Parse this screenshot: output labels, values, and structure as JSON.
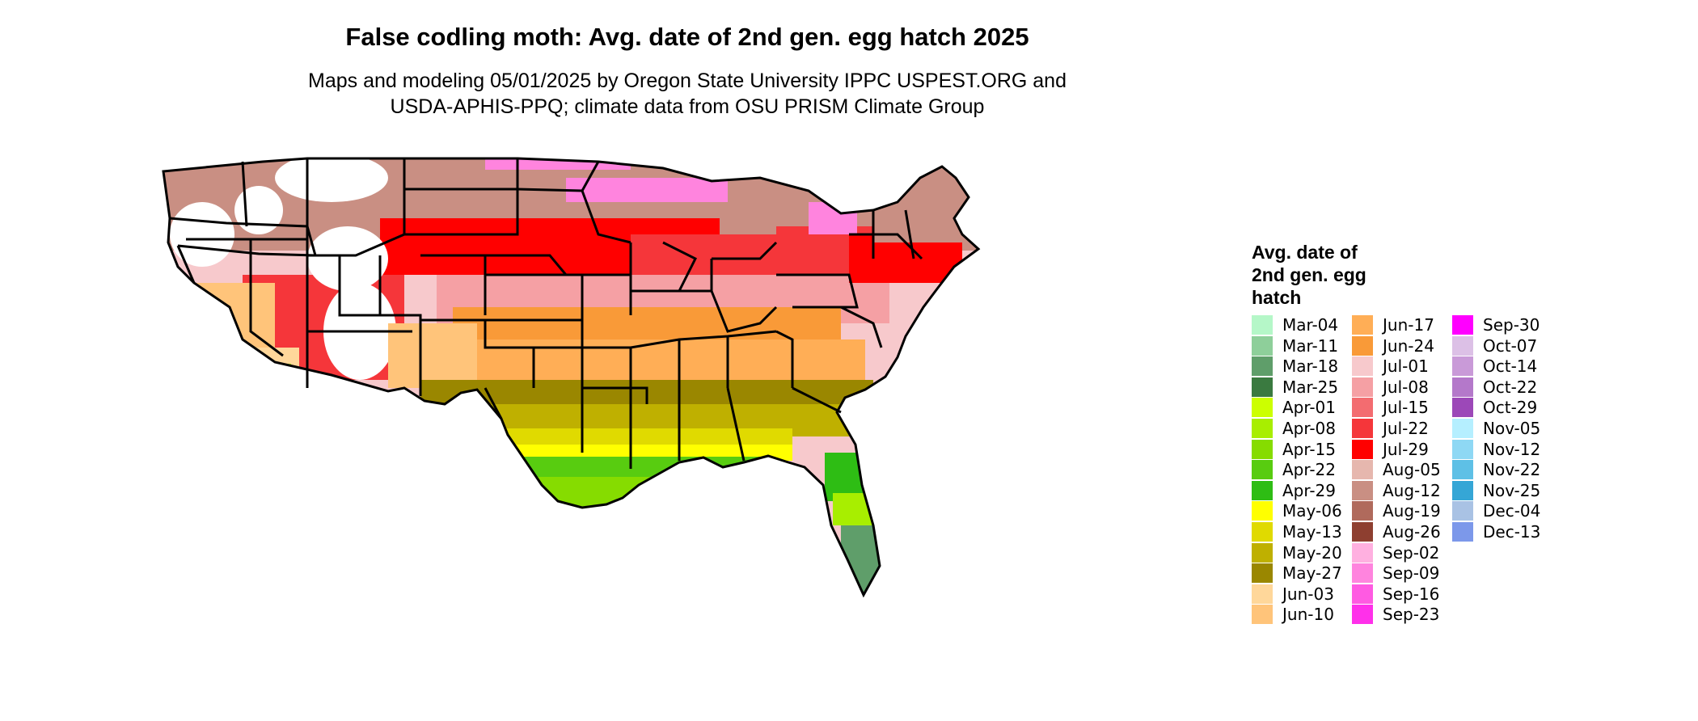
{
  "title": "False codling moth: Avg. date of 2nd gen. egg hatch 2025",
  "subtitle_lines": [
    "Maps and modeling 05/01/2025 by Oregon State University IPPC USPEST.ORG and",
    "USDA-APHIS-PPQ; climate data from OSU PRISM Climate Group"
  ],
  "legend": {
    "title_lines": [
      "Avg. date of",
      "2nd gen. egg",
      "hatch"
    ],
    "entries": [
      {
        "label": "Mar-04",
        "color": "#b5f7c8"
      },
      {
        "label": "Mar-11",
        "color": "#8ecf9a"
      },
      {
        "label": "Mar-18",
        "color": "#5f9e6a"
      },
      {
        "label": "Mar-25",
        "color": "#3a7a40"
      },
      {
        "label": "Apr-01",
        "color": "#ccff00"
      },
      {
        "label": "Apr-08",
        "color": "#a8ee00"
      },
      {
        "label": "Apr-15",
        "color": "#86dc00"
      },
      {
        "label": "Apr-22",
        "color": "#58cc10"
      },
      {
        "label": "Apr-29",
        "color": "#2ebd14"
      },
      {
        "label": "May-06",
        "color": "#ffff00"
      },
      {
        "label": "May-13",
        "color": "#e0da00"
      },
      {
        "label": "May-20",
        "color": "#bfb000"
      },
      {
        "label": "May-27",
        "color": "#9a8700"
      },
      {
        "label": "Jun-03",
        "color": "#ffd79a"
      },
      {
        "label": "Jun-10",
        "color": "#ffc47a"
      },
      {
        "label": "Jun-17",
        "color": "#ffae56"
      },
      {
        "label": "Jun-24",
        "color": "#f99a38"
      },
      {
        "label": "Jul-01",
        "color": "#f7c9cc"
      },
      {
        "label": "Jul-08",
        "color": "#f5a0a4"
      },
      {
        "label": "Jul-15",
        "color": "#f36c70"
      },
      {
        "label": "Jul-22",
        "color": "#f5363a"
      },
      {
        "label": "Jul-29",
        "color": "#ff0000"
      },
      {
        "label": "Aug-05",
        "color": "#e6b7ae"
      },
      {
        "label": "Aug-12",
        "color": "#c98f83"
      },
      {
        "label": "Aug-19",
        "color": "#b06a5c"
      },
      {
        "label": "Aug-26",
        "color": "#8e3f30"
      },
      {
        "label": "Sep-02",
        "color": "#ffb0e0"
      },
      {
        "label": "Sep-09",
        "color": "#ff84de"
      },
      {
        "label": "Sep-16",
        "color": "#ff5ae2"
      },
      {
        "label": "Sep-23",
        "color": "#ff30ea"
      },
      {
        "label": "Sep-30",
        "color": "#ff00ff"
      },
      {
        "label": "Oct-07",
        "color": "#dcc0e6"
      },
      {
        "label": "Oct-14",
        "color": "#c99ad8"
      },
      {
        "label": "Oct-22",
        "color": "#b478ca"
      },
      {
        "label": "Oct-29",
        "color": "#9c48b8"
      },
      {
        "label": "Nov-05",
        "color": "#b5efff"
      },
      {
        "label": "Nov-12",
        "color": "#8ed8f4"
      },
      {
        "label": "Nov-22",
        "color": "#5ec0e6"
      },
      {
        "label": "Nov-25",
        "color": "#35a6d6"
      },
      {
        "label": "Dec-04",
        "color": "#a9c2e4"
      },
      {
        "label": "Dec-13",
        "color": "#7c98ea"
      }
    ]
  },
  "map_colors": {
    "ocean_border": "#000000",
    "unsuitable": "#ffffff"
  }
}
